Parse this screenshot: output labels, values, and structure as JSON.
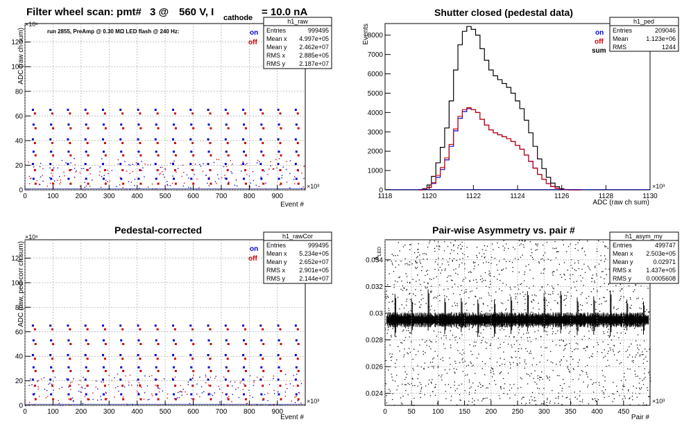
{
  "page_title": {
    "main": "Filter wheel scan: pmt#",
    "pmt": "3 @",
    "voltage": "560 V, I",
    "subscript": "cathode",
    "current": "= 10.0 nA"
  },
  "colors": {
    "on": "#0000cc",
    "off": "#cc0000",
    "sum": "#000000",
    "frame": "#000000",
    "grid": "#9a9a9a"
  },
  "chart_data": [
    {
      "id": "raw",
      "type": "scatter",
      "title": "",
      "xlabel": "Event #",
      "ylabel": "ADC (raw ch sum)",
      "x_exponent": "×10³",
      "y_exponent": "×10⁶",
      "xlim": [
        0,
        999.5
      ],
      "ylim": [
        0,
        135
      ],
      "xticks": [
        "0",
        "100",
        "200",
        "300",
        "400",
        "500",
        "600",
        "700",
        "800",
        "900"
      ],
      "yticks": [
        "0",
        "20",
        "40",
        "60",
        "80",
        "100",
        "120"
      ],
      "grid": true,
      "annotation": "run 2855, PreAmp @ 0.30 MΩ  LED flash @  240 Hz:",
      "legend": [
        {
          "label": "on",
          "color": "#0000cc"
        },
        {
          "label": "off",
          "color": "#cc0000"
        }
      ],
      "stats": {
        "name": "h1_raw",
        "rows": [
          [
            "Entries",
            "999495"
          ],
          [
            "Mean x",
            "4.997e+05"
          ],
          [
            "Mean y",
            "2.462e+07"
          ],
          [
            "RMS x",
            "2.885e+05"
          ],
          [
            "RMS y",
            "2.187e+07"
          ]
        ]
      },
      "pattern": {
        "period": 62.5,
        "levels": [
          {
            "y": 65,
            "color": "#0000cc"
          },
          {
            "y": 62,
            "color": "#cc0000"
          },
          {
            "y": 53,
            "color": "#0000cc"
          },
          {
            "y": 50,
            "color": "#cc0000"
          },
          {
            "y": 41,
            "color": "#0000cc"
          },
          {
            "y": 38,
            "color": "#cc0000"
          },
          {
            "y": 31,
            "color": "#0000cc"
          },
          {
            "y": 28,
            "color": "#cc0000"
          },
          {
            "y": 21,
            "color": "#0000cc"
          },
          {
            "y": 16,
            "color": "#cc0000"
          },
          {
            "y": 9,
            "color": "#0000cc"
          },
          {
            "y": 5,
            "color": "#cc0000"
          }
        ]
      }
    },
    {
      "id": "ped",
      "type": "line",
      "title": "Shutter closed (pedestal data)",
      "xlabel": "ADC (raw ch sum)",
      "ylabel": "Events",
      "x_exponent": "×10³",
      "xlim": [
        1118,
        1130
      ],
      "ylim": [
        0,
        8600
      ],
      "xticks": [
        "1118",
        "1120",
        "1122",
        "1124",
        "1126",
        "1128",
        "1130"
      ],
      "yticks": [
        "0",
        "1000",
        "2000",
        "3000",
        "4000",
        "5000",
        "6000",
        "7000",
        "8000"
      ],
      "grid": false,
      "legend": [
        {
          "label": "on",
          "color": "#0000cc"
        },
        {
          "label": "off",
          "color": "#cc0000"
        },
        {
          "label": "sum",
          "color": "#000000"
        }
      ],
      "stats": {
        "name": "h1_ped",
        "rows": [
          [
            "Entries",
            "209046"
          ],
          [
            "Mean",
            "1.123e+06"
          ],
          [
            "RMS",
            "1244"
          ]
        ]
      },
      "series": [
        {
          "name": "sum",
          "x": [
            1119.6,
            1119.8,
            1120.0,
            1120.2,
            1120.4,
            1120.6,
            1120.8,
            1121.0,
            1121.2,
            1121.4,
            1121.6,
            1121.8,
            1122.0,
            1122.2,
            1122.4,
            1122.6,
            1122.8,
            1123.0,
            1123.2,
            1123.4,
            1123.6,
            1123.8,
            1124.0,
            1124.2,
            1124.4,
            1124.6,
            1124.8,
            1125.0,
            1125.2,
            1125.4,
            1125.6,
            1125.8,
            1126.0,
            1126.2,
            1126.4,
            1126.6,
            1126.8
          ],
          "y": [
            0,
            60,
            250,
            700,
            1400,
            2200,
            3200,
            4600,
            6200,
            7500,
            8200,
            8450,
            8300,
            8000,
            7300,
            6700,
            6200,
            5900,
            5700,
            5500,
            5300,
            5000,
            4600,
            4200,
            3600,
            2950,
            2250,
            1600,
            1100,
            650,
            350,
            160,
            60,
            20,
            0,
            0,
            0
          ]
        },
        {
          "name": "on",
          "x": [
            1119.6,
            1119.8,
            1120.0,
            1120.2,
            1120.4,
            1120.6,
            1120.8,
            1121.0,
            1121.2,
            1121.4,
            1121.6,
            1121.8,
            1122.0,
            1122.2,
            1122.4,
            1122.6,
            1122.8,
            1123.0,
            1123.2,
            1123.4,
            1123.6,
            1123.8,
            1124.0,
            1124.2,
            1124.4,
            1124.6,
            1124.8,
            1125.0,
            1125.2,
            1125.4,
            1125.6,
            1125.8,
            1126.0,
            1126.2,
            1126.4,
            1126.6,
            1126.8
          ],
          "y": [
            0,
            30,
            120,
            330,
            650,
            1050,
            1550,
            2250,
            3050,
            3700,
            4050,
            4200,
            4150,
            4000,
            3650,
            3350,
            3100,
            2950,
            2850,
            2750,
            2650,
            2500,
            2300,
            2100,
            1800,
            1480,
            1130,
            800,
            550,
            330,
            180,
            80,
            30,
            10,
            0,
            0,
            0
          ]
        },
        {
          "name": "off",
          "x": [
            1119.6,
            1119.8,
            1120.0,
            1120.2,
            1120.4,
            1120.6,
            1120.8,
            1121.0,
            1121.2,
            1121.4,
            1121.6,
            1121.8,
            1122.0,
            1122.2,
            1122.4,
            1122.6,
            1122.8,
            1123.0,
            1123.2,
            1123.4,
            1123.6,
            1123.8,
            1124.0,
            1124.2,
            1124.4,
            1124.6,
            1124.8,
            1125.0,
            1125.2,
            1125.4,
            1125.6,
            1125.8,
            1126.0,
            1126.2,
            1126.4,
            1126.6,
            1126.8
          ],
          "y": [
            0,
            30,
            130,
            370,
            750,
            1150,
            1650,
            2350,
            3150,
            3800,
            4150,
            4250,
            4150,
            4000,
            3650,
            3350,
            3100,
            2950,
            2850,
            2750,
            2650,
            2500,
            2300,
            2100,
            1800,
            1470,
            1120,
            800,
            550,
            320,
            170,
            80,
            30,
            10,
            0,
            0,
            0
          ]
        }
      ]
    },
    {
      "id": "rawcor",
      "type": "scatter",
      "title": "Pedestal-corrected",
      "xlabel": "Event #",
      "ylabel": "ADC (raw, ped-corr ch sum)",
      "x_exponent": "×10³",
      "y_exponent": "×10⁶",
      "xlim": [
        0,
        999.5
      ],
      "ylim": [
        0,
        135
      ],
      "xticks": [
        "0",
        "100",
        "200",
        "300",
        "400",
        "500",
        "600",
        "700",
        "800",
        "900"
      ],
      "yticks": [
        "0",
        "20",
        "40",
        "60",
        "80",
        "100",
        "120"
      ],
      "grid": true,
      "legend": [
        {
          "label": "on",
          "color": "#0000cc"
        },
        {
          "label": "off",
          "color": "#cc0000"
        }
      ],
      "stats": {
        "name": "h1_rawCor",
        "rows": [
          [
            "Entries",
            "999495"
          ],
          [
            "Mean x",
            "5.234e+05"
          ],
          [
            "Mean y",
            "2.652e+07"
          ],
          [
            "RMS x",
            "2.901e+05"
          ],
          [
            "RMS y",
            "2.144e+07"
          ]
        ]
      },
      "pattern": {
        "period": 62.5,
        "levels": [
          {
            "y": 65,
            "color": "#0000cc"
          },
          {
            "y": 62,
            "color": "#cc0000"
          },
          {
            "y": 53,
            "color": "#0000cc"
          },
          {
            "y": 50,
            "color": "#cc0000"
          },
          {
            "y": 41,
            "color": "#0000cc"
          },
          {
            "y": 38,
            "color": "#cc0000"
          },
          {
            "y": 31,
            "color": "#0000cc"
          },
          {
            "y": 28,
            "color": "#cc0000"
          },
          {
            "y": 21,
            "color": "#0000cc"
          },
          {
            "y": 16,
            "color": "#cc0000"
          },
          {
            "y": 9,
            "color": "#0000cc"
          },
          {
            "y": 5,
            "color": "#cc0000"
          }
        ]
      }
    },
    {
      "id": "asym",
      "type": "scatter",
      "title": "Pair-wise Asymmetry vs. pair #",
      "xlabel": "Pair #",
      "ylabel": "A_LED",
      "x_exponent": "×10³",
      "xlim": [
        0,
        500
      ],
      "ylim": [
        0.0231,
        0.0355
      ],
      "xticks": [
        "0",
        "50",
        "100",
        "150",
        "200",
        "250",
        "300",
        "350",
        "400",
        "450"
      ],
      "yticks": [
        "0.024",
        "0.026",
        "0.028",
        "0.03",
        "0.032",
        "0.034"
      ],
      "grid": true,
      "stats": {
        "name": "h1_asym_my",
        "rows": [
          [
            "Entries",
            "499747"
          ],
          [
            "Mean x",
            "2.503e+05"
          ],
          [
            "Mean y",
            "0.02971"
          ],
          [
            "RMS x",
            "1.437e+05"
          ],
          [
            "RMS y",
            "0.0005608"
          ]
        ]
      },
      "band": {
        "center": 0.0295,
        "halfwidth": 0.0004,
        "spike_period": 31.25,
        "spike_low": 0.0282,
        "spike_high": 0.0318
      }
    }
  ]
}
